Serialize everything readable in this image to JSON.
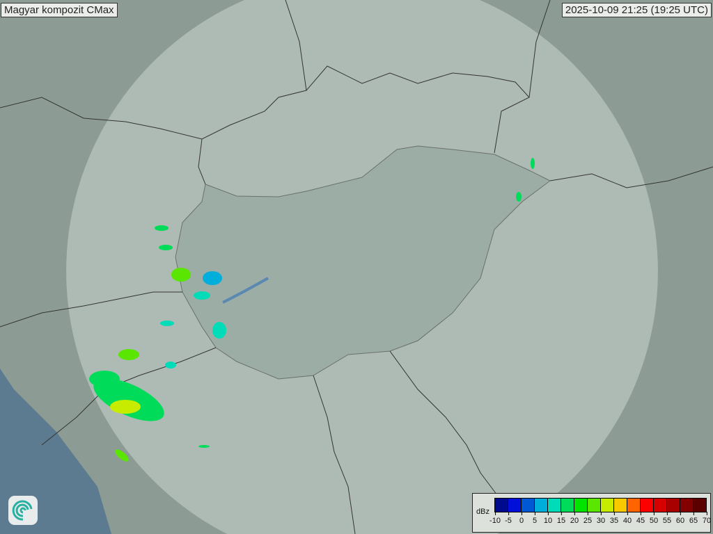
{
  "header": {
    "title": "Magyar kompozit  CMax",
    "timestamp": "2025-10-09 21:25 (19:25 UTC)"
  },
  "legend": {
    "unit": "dBz",
    "ticks": [
      "-10",
      "-5",
      "0",
      "5",
      "10",
      "15",
      "20",
      "25",
      "30",
      "35",
      "40",
      "45",
      "50",
      "55",
      "60",
      "65",
      "70"
    ],
    "colors": [
      "#000a8c",
      "#0010d8",
      "#0058d4",
      "#00aedc",
      "#00dcb8",
      "#00dc5a",
      "#00e400",
      "#5ae600",
      "#c8ec00",
      "#f8c800",
      "#ff6400",
      "#ff0000",
      "#d60000",
      "#a80000",
      "#820000",
      "#5a0000"
    ]
  },
  "map": {
    "background": "#8e9e96",
    "radar_range_color": "#d8e2dc",
    "sea_color": "#5c7b90",
    "border_color": "#333333",
    "logo": "omsz-swirl-logo"
  }
}
